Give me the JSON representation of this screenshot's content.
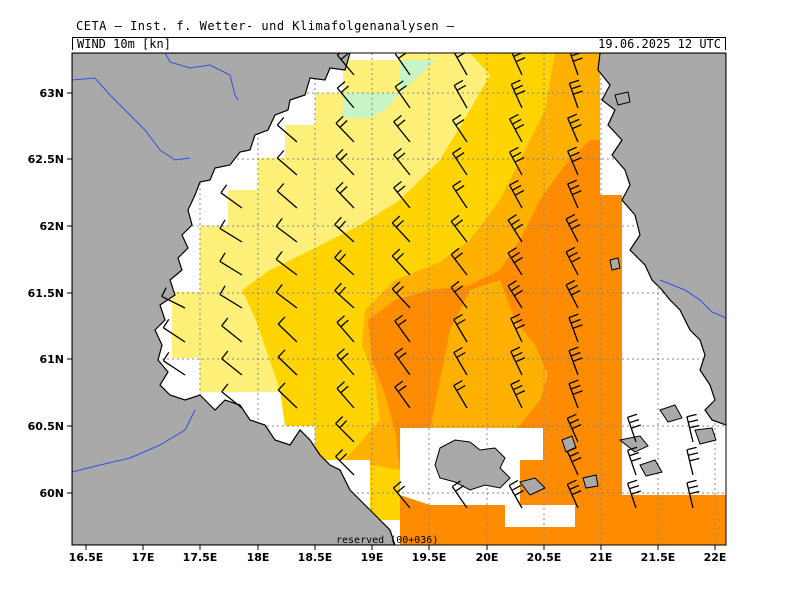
{
  "header": {
    "title": "CETA — Inst. f. Wetter- und Klimafolgenanalysen —",
    "field": "WIND 10m [kn]",
    "datetime": "19.06.2025 12 UTC"
  },
  "map": {
    "lon_labels": [
      "16.5E",
      "17E",
      "17.5E",
      "18E",
      "18.5E",
      "19E",
      "19.5E",
      "20E",
      "20.5E",
      "21E",
      "21.5E",
      "22E"
    ],
    "lat_labels": [
      "63N",
      "62.5N",
      "62N",
      "61.5N",
      "61N",
      "60.5N",
      "60N"
    ],
    "footer_text": "reserved (00+036)",
    "colors": {
      "land": "#a9a9a9",
      "sea_nodata": "#ffffff",
      "band_green": "#c8f5c8",
      "band_pale_yellow": "#fff07a",
      "band_yellow": "#ffd400",
      "band_light_orange": "#ffb000",
      "band_orange": "#ff8c00",
      "border_line": "#3050e0"
    }
  }
}
